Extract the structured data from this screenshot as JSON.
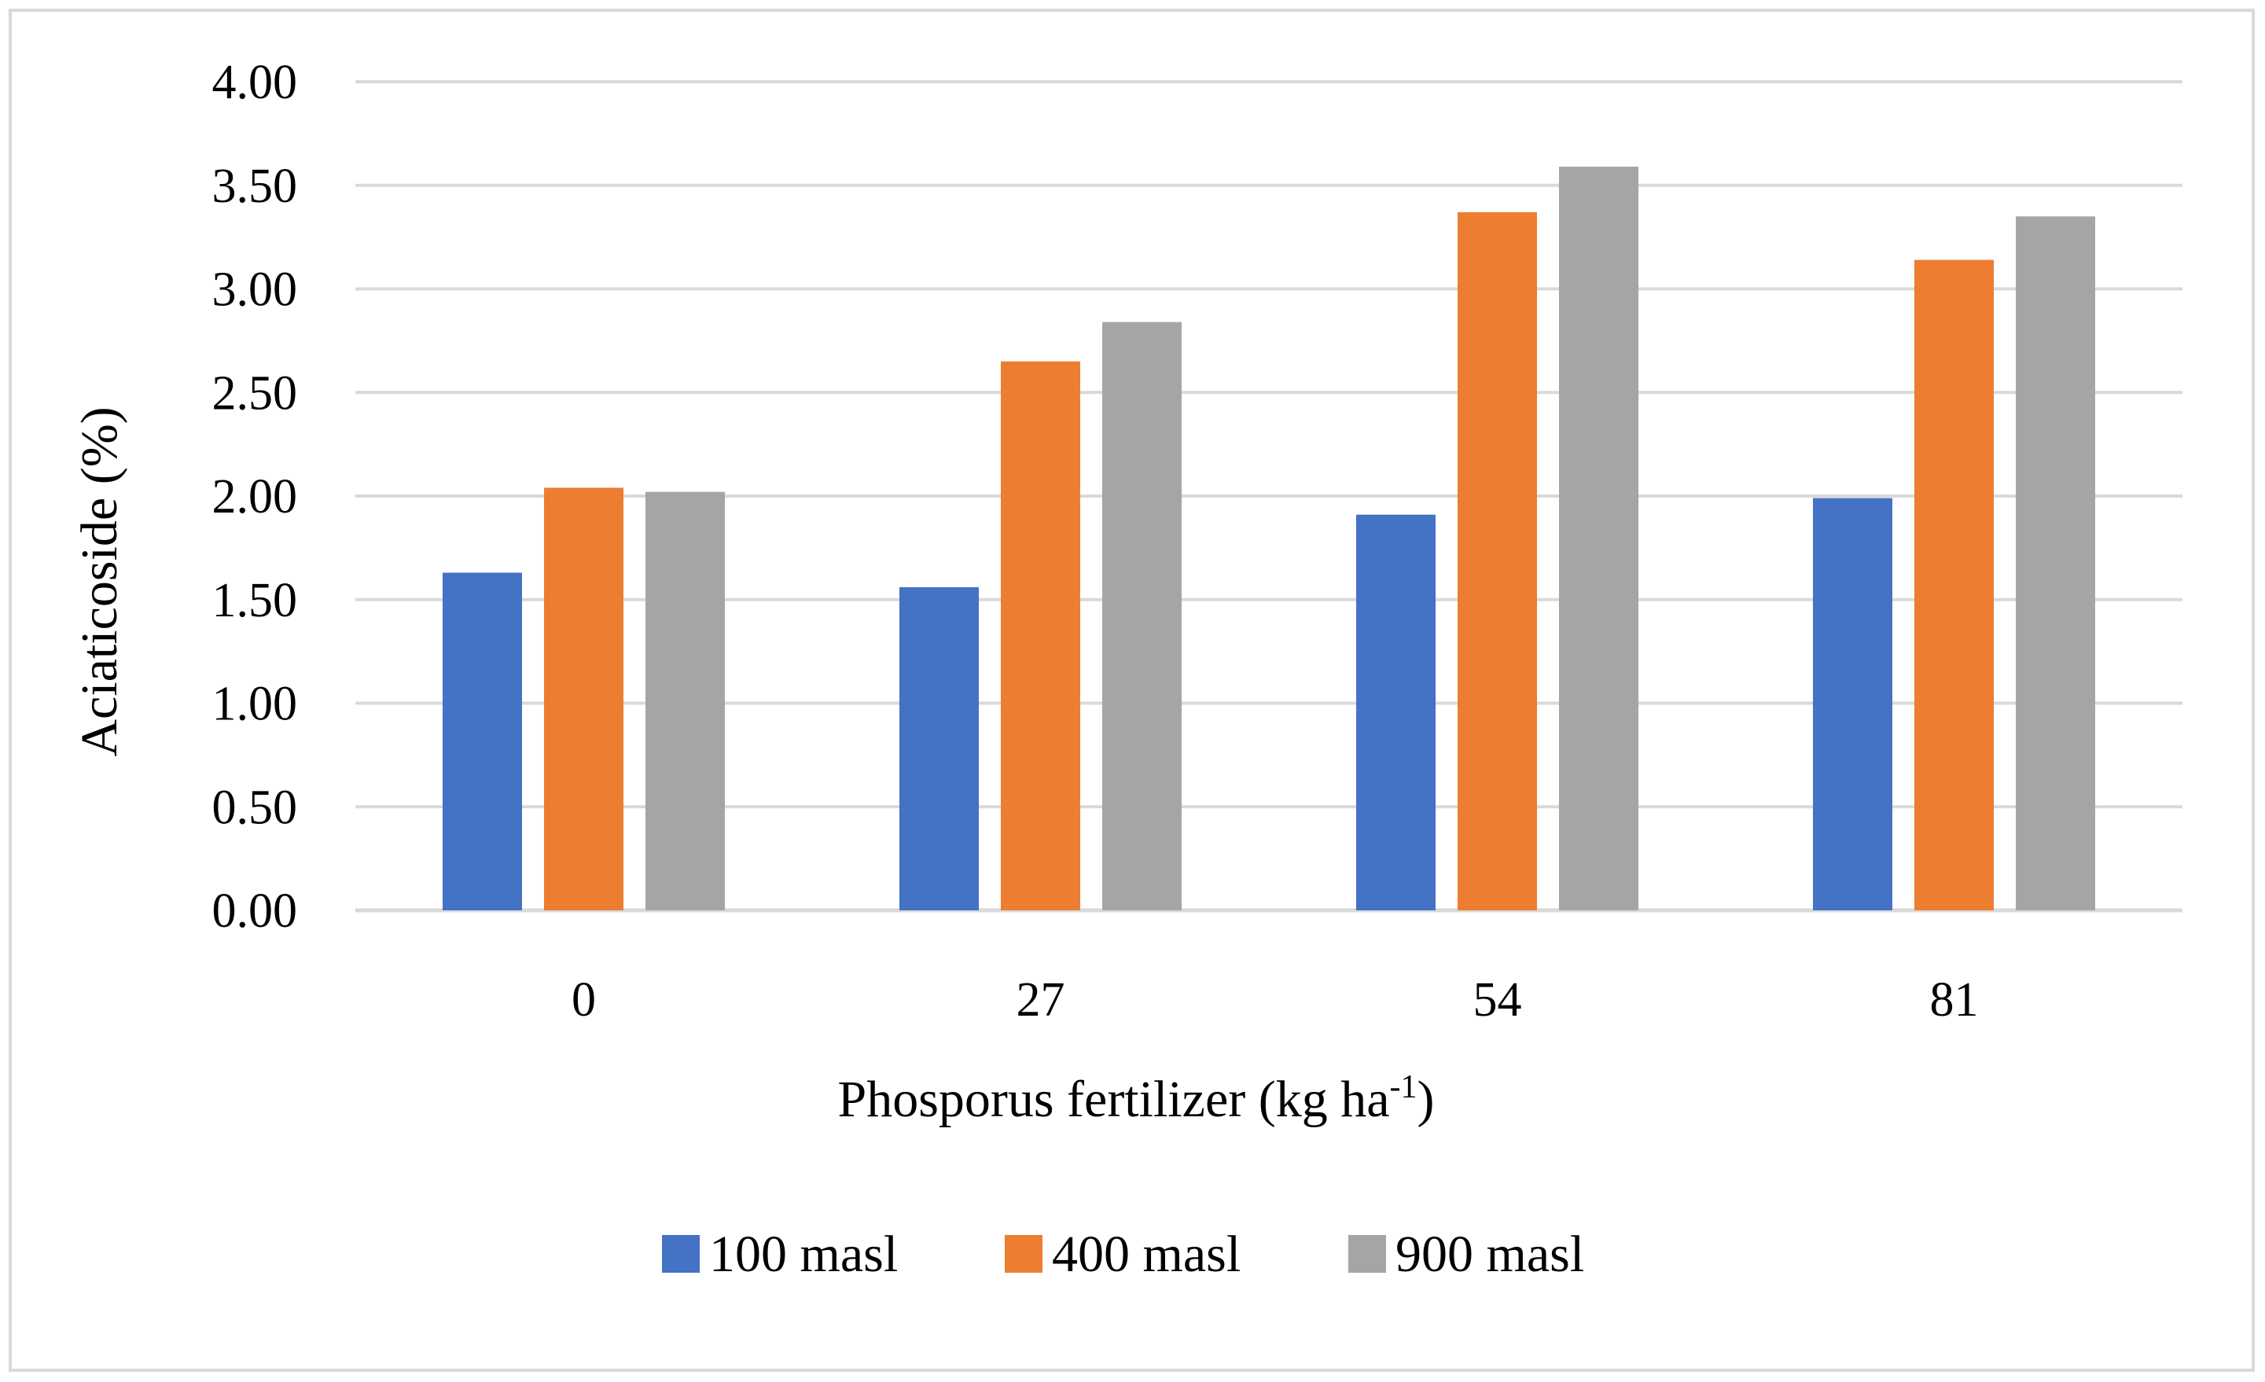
{
  "chart_data": {
    "type": "bar",
    "title": "",
    "categories": [
      "0",
      "27",
      "54",
      "81"
    ],
    "series": [
      {
        "name": "100 masl",
        "color": "#4472C4",
        "values": [
          1.63,
          1.56,
          1.91,
          1.99
        ]
      },
      {
        "name": "400 masl",
        "color": "#ED7D31",
        "values": [
          2.04,
          2.65,
          3.37,
          3.14
        ]
      },
      {
        "name": "900 masl",
        "color": "#A5A5A5",
        "values": [
          2.02,
          2.84,
          3.59,
          3.35
        ]
      }
    ],
    "xlabel": {
      "main": "Phosporus fertilizer (kg ha",
      "superscript": "-1",
      "tail": ")"
    },
    "ylabel": "Aciaticoside (%)",
    "ylim": [
      0,
      4
    ],
    "yticks": [
      "0.00",
      "0.50",
      "1.00",
      "1.50",
      "2.00",
      "2.50",
      "3.00",
      "3.50",
      "4.00"
    ],
    "grid": true,
    "legend_position": "bottom-center"
  }
}
